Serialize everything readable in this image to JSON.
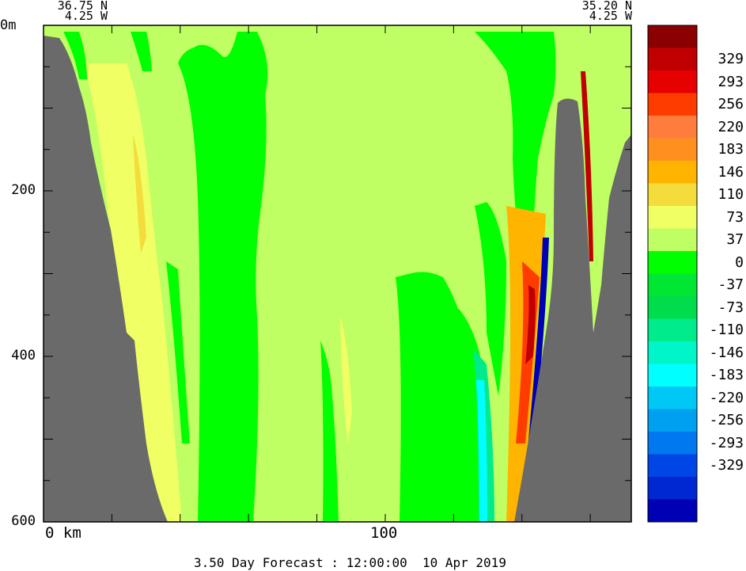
{
  "header": {
    "start": {
      "lat": "36.75 N",
      "lon": "4.25 W"
    },
    "end": {
      "lat": "35.20 N",
      "lon": "4.25 W"
    }
  },
  "caption": "3.50 Day Forecast : 12:00:00  10 Apr 2019",
  "chart_data": {
    "type": "heatmap",
    "x_axis": {
      "unit": "km",
      "range": [
        0,
        172
      ],
      "labels": [
        "0 km",
        "100"
      ],
      "label_positions": [
        0,
        100
      ]
    },
    "y_axis": {
      "unit": "m",
      "range": [
        0,
        600
      ],
      "reversed": true,
      "labels": [
        "0m",
        "200",
        "400",
        "600"
      ],
      "label_positions": [
        0,
        200,
        400,
        600
      ]
    },
    "colorbar": {
      "labels": [
        "329",
        "293",
        "256",
        "220",
        "183",
        "146",
        "110",
        "73",
        "37",
        "0",
        "-37",
        "-73",
        "-110",
        "-146",
        "-183",
        "-220",
        "-256",
        "-293",
        "-329"
      ],
      "colors": [
        "#8b0000",
        "#c00000",
        "#e60000",
        "#ff3c00",
        "#ff7d3c",
        "#ff9020",
        "#ffb400",
        "#f3dc3c",
        "#f0ff64",
        "#c0ff64",
        "#00ff00",
        "#00e632",
        "#00dc4b",
        "#00eb8c",
        "#00f5c8",
        "#00ffff",
        "#00c8f5",
        "#00a0f0",
        "#0078f0",
        "#0046e6",
        "#0028d2",
        "#0000b4"
      ]
    },
    "colors": {
      "land": "#6a6a6a",
      "background": "#c0ff64"
    }
  }
}
